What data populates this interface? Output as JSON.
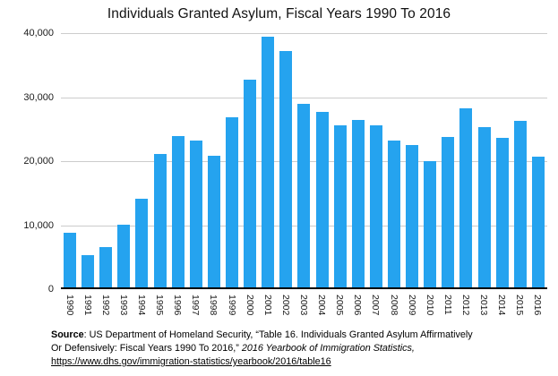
{
  "chart_data": {
    "type": "bar",
    "title": "Individuals Granted Asylum, Fiscal Years 1990 To 2016",
    "categories": [
      "1990",
      "1991",
      "1992",
      "1993",
      "1994",
      "1995",
      "1996",
      "1997",
      "1998",
      "1999",
      "2000",
      "2001",
      "2002",
      "2003",
      "2004",
      "2005",
      "2006",
      "2007",
      "2008",
      "2009",
      "2010",
      "2011",
      "2012",
      "2013",
      "2014",
      "2015",
      "2016"
    ],
    "values": [
      8500,
      5000,
      6300,
      9800,
      13800,
      20900,
      23600,
      22900,
      20500,
      26600,
      32500,
      39100,
      36900,
      28700,
      27400,
      25300,
      26200,
      25300,
      23000,
      22200,
      19700,
      23500,
      28000,
      25000,
      23300,
      26000,
      20400
    ],
    "xlabel": "",
    "ylabel": "",
    "ylim": [
      0,
      40000
    ],
    "y_ticks": [
      {
        "label": "40,000",
        "value": 40000
      },
      {
        "label": "30,000",
        "value": 30000
      },
      {
        "label": "20,000",
        "value": 20000
      },
      {
        "label": "10,000",
        "value": 10000
      },
      {
        "label": "0",
        "value": 0
      }
    ],
    "grid": "horizontal",
    "legend": "none",
    "bar_color": "#25a3ef",
    "gridline_color": "#cccccc",
    "axis_color": "#000000"
  },
  "source": {
    "label": "Source",
    "line1_rest": ": US Department of Homeland Security, “Table 16. Individuals Granted Asylum Affirmatively",
    "line2_plain": "Or Defensively: Fiscal Years 1990 To 2016,” ",
    "line2_italic": "2016 Yearbook of Immigration Statistics,",
    "link": "https://www.dhs.gov/immigration-statistics/yearbook/2016/table16"
  }
}
